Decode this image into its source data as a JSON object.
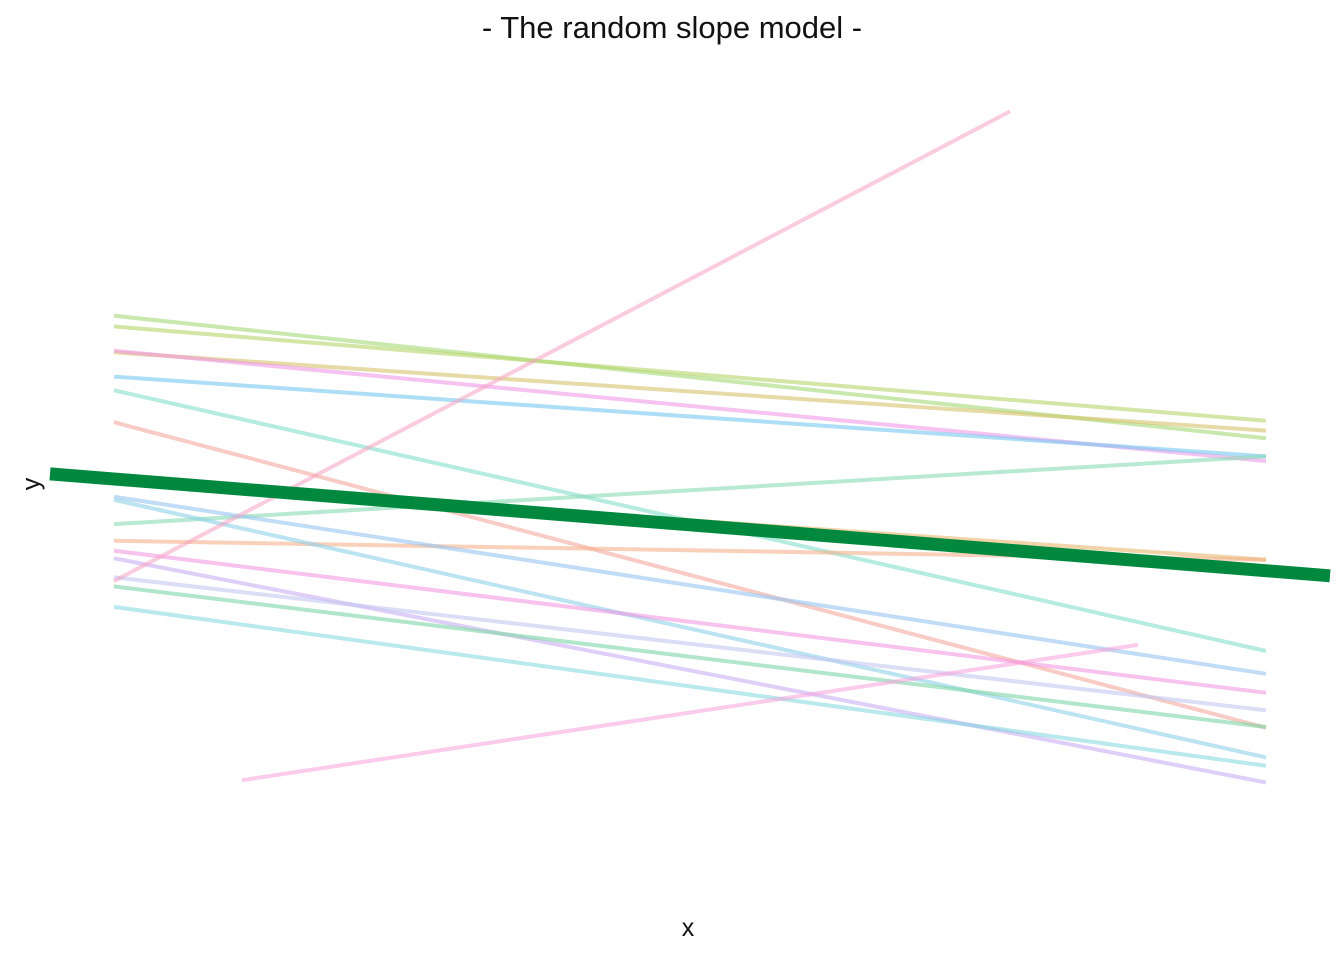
{
  "chart_data": {
    "type": "line",
    "title": "- The random slope model -",
    "xlabel": "x",
    "ylabel": "y",
    "grid": false,
    "xlim": [
      0,
      100
    ],
    "ylim": [
      0,
      100
    ],
    "series": [
      {
        "color": "#a3d977",
        "x": [
          5,
          95
        ],
        "y": [
          71.6,
          55.5
        ],
        "opacity": 0.6
      },
      {
        "color": "#b5d56a",
        "x": [
          5,
          95
        ],
        "y": [
          70.2,
          57.8
        ],
        "opacity": 0.6
      },
      {
        "color": "#d6c36a",
        "x": [
          5,
          95
        ],
        "y": [
          66.8,
          56.5
        ],
        "opacity": 0.6
      },
      {
        "color": "#ee8fe6",
        "x": [
          5,
          95
        ],
        "y": [
          67.0,
          52.5
        ],
        "opacity": 0.55
      },
      {
        "color": "#78c8f0",
        "x": [
          5,
          95
        ],
        "y": [
          63.6,
          53.1
        ],
        "opacity": 0.6
      },
      {
        "color": "#6ed7c0",
        "x": [
          5,
          95
        ],
        "y": [
          61.8,
          27.5
        ],
        "opacity": 0.5
      },
      {
        "color": "#f29a8a",
        "x": [
          5,
          95
        ],
        "y": [
          57.6,
          17.4
        ],
        "opacity": 0.5
      },
      {
        "color": "#8ad8b5",
        "x": [
          5,
          95
        ],
        "y": [
          44.2,
          53.1
        ],
        "opacity": 0.6
      },
      {
        "color": "#e8b870",
        "x": [
          5,
          95
        ],
        "y": [
          49.9,
          39.5
        ],
        "opacity": 0.6
      },
      {
        "color": "#f5b08a",
        "x": [
          5,
          95
        ],
        "y": [
          42.0,
          39.5
        ],
        "opacity": 0.6
      },
      {
        "color": "#8ed0e8",
        "x": [
          5,
          95
        ],
        "y": [
          47.4,
          13.5
        ],
        "opacity": 0.6
      },
      {
        "color": "#98c4f0",
        "x": [
          5,
          95
        ],
        "y": [
          47.8,
          24.5
        ],
        "opacity": 0.6
      },
      {
        "color": "#f38fe0",
        "x": [
          5,
          95
        ],
        "y": [
          40.7,
          22.0
        ],
        "opacity": 0.55
      },
      {
        "color": "#c5a8f2",
        "x": [
          5,
          95
        ],
        "y": [
          39.7,
          10.2
        ],
        "opacity": 0.55
      },
      {
        "color": "#c4c6f2",
        "x": [
          5,
          95
        ],
        "y": [
          37.2,
          19.7
        ],
        "opacity": 0.6
      },
      {
        "color": "#7fd6a6",
        "x": [
          5,
          95
        ],
        "y": [
          36.0,
          17.5
        ],
        "opacity": 0.6
      },
      {
        "color": "#74d4dc",
        "x": [
          5,
          95
        ],
        "y": [
          33.3,
          12.4
        ],
        "opacity": 0.5
      },
      {
        "color": "#f5a3c2",
        "x": [
          5,
          75
        ],
        "y": [
          36.7,
          98.5
        ],
        "opacity": 0.55
      },
      {
        "color": "#f7a0dc",
        "x": [
          15,
          85
        ],
        "y": [
          10.5,
          28.3
        ],
        "opacity": 0.55
      }
    ],
    "fixed_effect": {
      "name": "",
      "color": "#00893e",
      "x": [
        0,
        100
      ],
      "y": [
        50.8,
        37.4
      ],
      "opacity": 1
    }
  }
}
